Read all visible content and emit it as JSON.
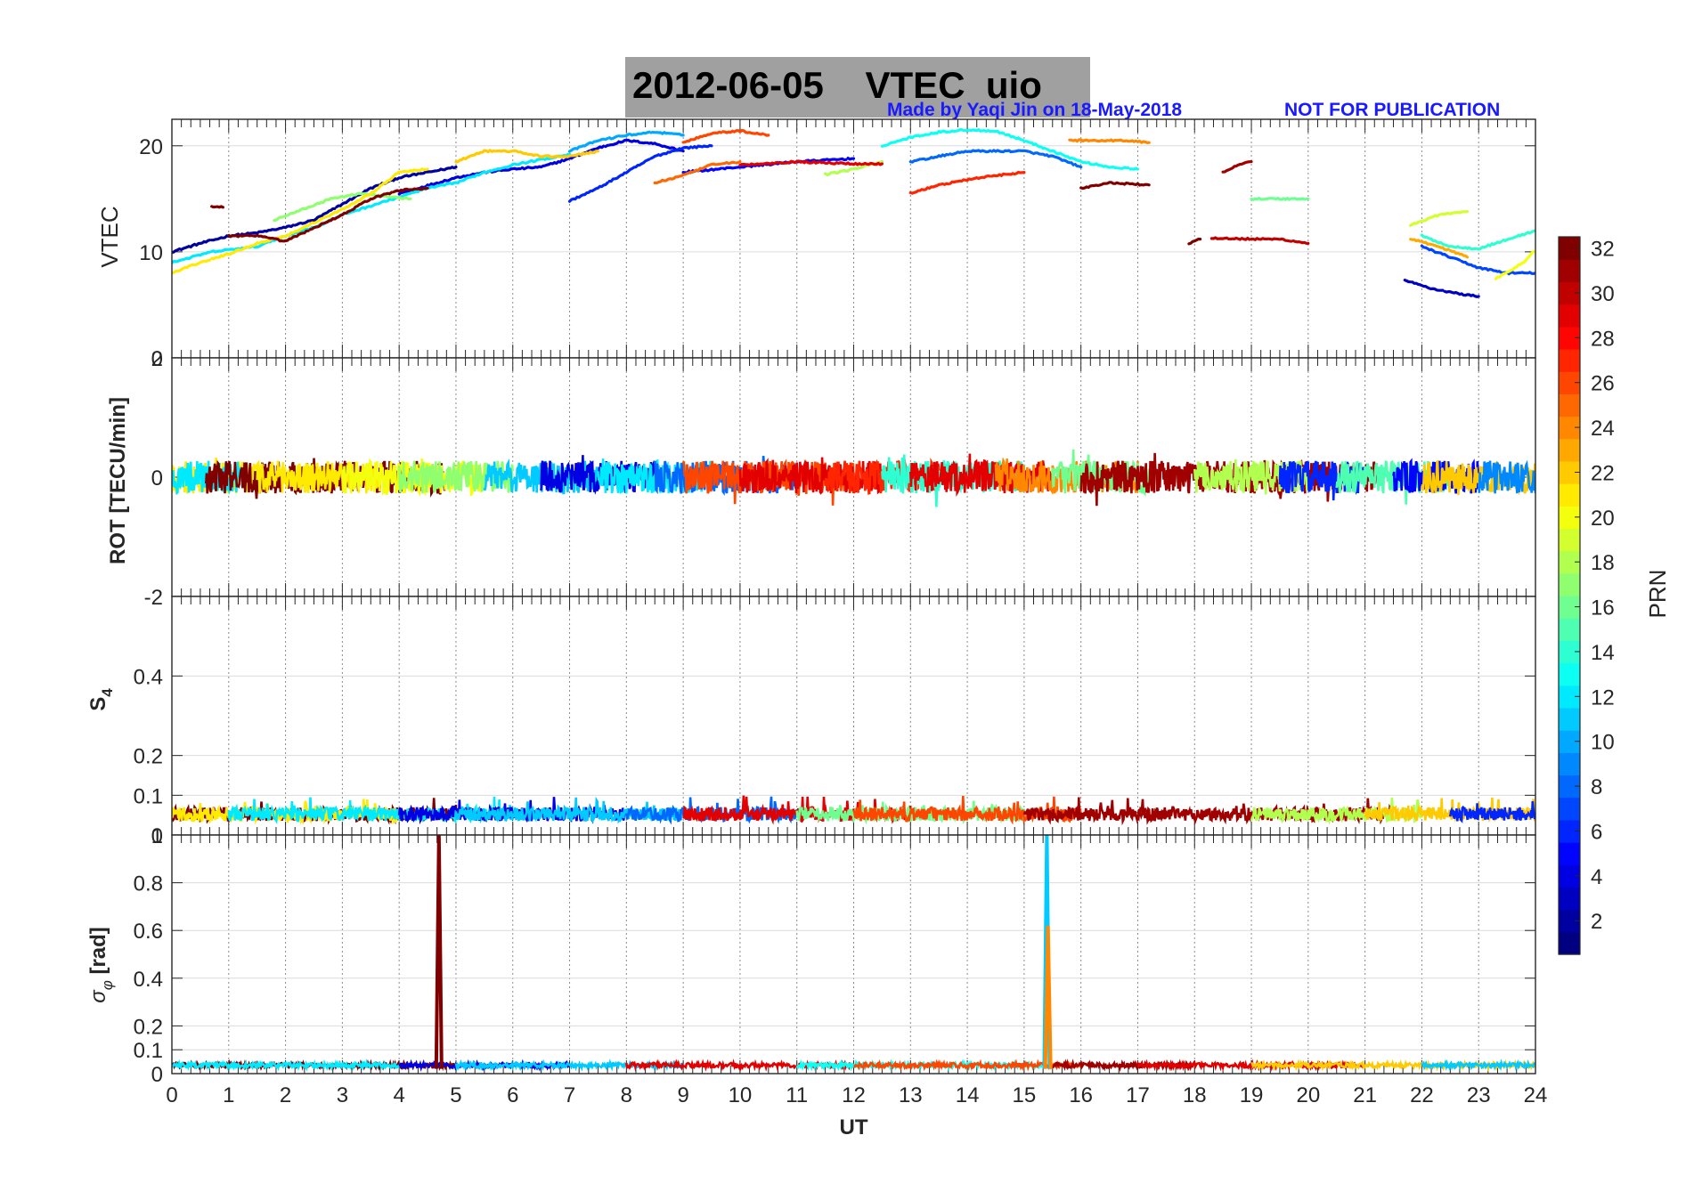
{
  "header": {
    "title": "2012-06-05    VTEC  uio",
    "credit": "Made by Yaqi Jin on 18-May-2018",
    "notice": "NOT FOR PUBLICATION"
  },
  "chart_data": [
    {
      "type": "line",
      "panel": "vtec",
      "xlabel": "",
      "ylabel": "VTEC",
      "xlim": [
        0,
        24
      ],
      "ylim": [
        0,
        22.5
      ],
      "yticks": [
        0,
        10,
        20
      ],
      "ytick_labels": [
        "0",
        "10",
        "20"
      ],
      "grid": true,
      "series": [
        {
          "prn": 2,
          "points": [
            [
              0,
              10.0
            ],
            [
              0.5,
              10.8
            ],
            [
              1,
              11.5
            ],
            [
              1.5,
              11.8
            ],
            [
              2,
              12.3
            ],
            [
              2.5,
              13.0
            ],
            [
              3,
              14.5
            ],
            [
              3.5,
              16.0
            ],
            [
              4,
              17.0
            ],
            [
              4.5,
              17.5
            ],
            [
              5,
              18.0
            ]
          ]
        },
        {
          "prn": 4,
          "points": [
            [
              4,
              15.5
            ],
            [
              5,
              17.0
            ],
            [
              5.5,
              17.5
            ],
            [
              6,
              17.8
            ],
            [
              6.5,
              18.0
            ],
            [
              7,
              18.8
            ],
            [
              7.5,
              19.8
            ],
            [
              8,
              20.5
            ],
            [
              8.5,
              20.2
            ],
            [
              9,
              19.5
            ]
          ]
        },
        {
          "prn": 6,
          "points": [
            [
              7,
              14.8
            ],
            [
              7.5,
              16.0
            ],
            [
              8,
              17.5
            ],
            [
              8.5,
              19.0
            ],
            [
              9,
              19.8
            ],
            [
              9.5,
              20.0
            ]
          ]
        },
        {
          "prn": 5,
          "points": [
            [
              9,
              17.5
            ],
            [
              10,
              18.0
            ],
            [
              11,
              18.5
            ],
            [
              12,
              18.8
            ]
          ]
        },
        {
          "prn": 8,
          "points": [
            [
              13,
              18.5
            ],
            [
              14,
              19.5
            ],
            [
              15,
              19.5
            ],
            [
              15.5,
              19.0
            ],
            [
              16,
              18.0
            ]
          ]
        },
        {
          "prn": 7,
          "points": [
            [
              22,
              10.5
            ],
            [
              22.5,
              9.5
            ],
            [
              23,
              8.5
            ],
            [
              23.5,
              8.0
            ],
            [
              24,
              8.0
            ]
          ]
        },
        {
          "prn": 3,
          "points": [
            [
              21.7,
              7.3
            ],
            [
              22.2,
              6.5
            ],
            [
              22.7,
              6.0
            ],
            [
              23,
              5.8
            ]
          ]
        },
        {
          "prn": 12,
          "points": [
            [
              0,
              9.0
            ],
            [
              0.7,
              10.0
            ],
            [
              1.5,
              10.5
            ],
            [
              2,
              11.5
            ],
            [
              2.6,
              12.5
            ],
            [
              3,
              13.5
            ],
            [
              4.5,
              16.0
            ],
            [
              5,
              16.5
            ],
            [
              5.5,
              17.5
            ],
            [
              6,
              18.2
            ],
            [
              7,
              19.2
            ]
          ]
        },
        {
          "prn": 10,
          "points": [
            [
              7,
              19.5
            ],
            [
              7.5,
              20.5
            ],
            [
              8,
              21.0
            ],
            [
              8.5,
              21.3
            ],
            [
              9,
              21.0
            ]
          ]
        },
        {
          "prn": 13,
          "points": [
            [
              12.5,
              20.0
            ],
            [
              13,
              20.8
            ],
            [
              13.5,
              21.3
            ],
            [
              14,
              21.5
            ],
            [
              14.5,
              21.4
            ],
            [
              15,
              20.5
            ],
            [
              15.5,
              19.5
            ],
            [
              16,
              18.5
            ],
            [
              16.5,
              18.0
            ],
            [
              17,
              17.8
            ]
          ]
        },
        {
          "prn": 14,
          "points": [
            [
              22,
              11.5
            ],
            [
              22.5,
              10.5
            ],
            [
              23,
              10.3
            ],
            [
              24,
              12.0
            ]
          ]
        },
        {
          "prn": 17,
          "points": [
            [
              1.8,
              13.0
            ],
            [
              2.3,
              14.0
            ],
            [
              2.8,
              15.0
            ],
            [
              3.3,
              15.5
            ],
            [
              3.8,
              15.2
            ],
            [
              4.2,
              15.0
            ]
          ]
        },
        {
          "prn": 18,
          "points": [
            [
              11.5,
              17.3
            ],
            [
              12,
              17.8
            ],
            [
              12.5,
              18.5
            ]
          ]
        },
        {
          "prn": 16,
          "points": [
            [
              19,
              15.0
            ],
            [
              19.5,
              15.0
            ],
            [
              20,
              15.0
            ]
          ]
        },
        {
          "prn": 19,
          "points": [
            [
              21.8,
              12.5
            ],
            [
              22.3,
              13.5
            ],
            [
              22.8,
              13.8
            ]
          ]
        },
        {
          "prn": 21,
          "points": [
            [
              0,
              8.0
            ],
            [
              0.5,
              9.0
            ],
            [
              1,
              9.8
            ],
            [
              1.5,
              10.8
            ],
            [
              2,
              11.5
            ],
            [
              3,
              14.0
            ],
            [
              3.5,
              15.5
            ],
            [
              4,
              17.5
            ],
            [
              4.5,
              17.8
            ]
          ]
        },
        {
          "prn": 22,
          "points": [
            [
              5,
              18.5
            ],
            [
              5.5,
              19.5
            ],
            [
              6,
              19.5
            ],
            [
              6.5,
              19.0
            ],
            [
              7,
              19.0
            ],
            [
              7.5,
              19.5
            ]
          ]
        },
        {
          "prn": 23,
          "points": [
            [
              21.8,
              11.2
            ],
            [
              22.3,
              10.5
            ],
            [
              22.8,
              9.5
            ]
          ]
        },
        {
          "prn": 20,
          "points": [
            [
              23.3,
              7.5
            ],
            [
              23.8,
              9.0
            ],
            [
              24,
              10.3
            ]
          ]
        },
        {
          "prn": 24,
          "points": [
            [
              15.8,
              20.5
            ],
            [
              16.3,
              20.5
            ],
            [
              16.8,
              20.5
            ],
            [
              17.2,
              20.3
            ]
          ]
        },
        {
          "prn": 25,
          "points": [
            [
              8.5,
              16.5
            ],
            [
              9,
              17.2
            ],
            [
              9.5,
              18.2
            ],
            [
              10,
              18.5
            ]
          ]
        },
        {
          "prn": 27,
          "points": [
            [
              13,
              15.5
            ],
            [
              13.5,
              16.3
            ],
            [
              14,
              16.8
            ],
            [
              14.5,
              17.2
            ],
            [
              15,
              17.5
            ]
          ]
        },
        {
          "prn": 26,
          "points": [
            [
              9,
              20.3
            ],
            [
              9.5,
              21.2
            ],
            [
              10,
              21.4
            ],
            [
              10.5,
              21.0
            ]
          ]
        },
        {
          "prn": 29,
          "points": [
            [
              10,
              18.2
            ],
            [
              11,
              18.5
            ],
            [
              12,
              18.3
            ],
            [
              12.5,
              18.3
            ]
          ]
        },
        {
          "prn": 31,
          "points": [
            [
              18.5,
              17.5
            ],
            [
              18.8,
              18.3
            ],
            [
              19,
              18.5
            ]
          ]
        },
        {
          "prn": 30,
          "points": [
            [
              18.3,
              11.3
            ],
            [
              19,
              11.2
            ],
            [
              19.5,
              11.2
            ],
            [
              20,
              10.8
            ]
          ]
        },
        {
          "prn": 32,
          "points": [
            [
              0.7,
              14.3
            ],
            [
              0.9,
              14.2
            ]
          ]
        },
        {
          "prn": 32,
          "points": [
            [
              1,
              11.5
            ],
            [
              1.5,
              11.5
            ],
            [
              2,
              11.0
            ],
            [
              3,
              13.5
            ],
            [
              3.5,
              15.0
            ],
            [
              4,
              15.8
            ],
            [
              4.5,
              16.0
            ]
          ]
        },
        {
          "prn": 32,
          "points": [
            [
              16,
              16.0
            ],
            [
              16.5,
              16.5
            ],
            [
              17.2,
              16.3
            ]
          ]
        },
        {
          "prn": 32,
          "points": [
            [
              17.9,
              10.8
            ],
            [
              18.1,
              11.2
            ]
          ]
        }
      ]
    },
    {
      "type": "line",
      "panel": "rot",
      "ylabel": "ROT [TECU/min]",
      "xlim": [
        0,
        24
      ],
      "ylim": [
        -2,
        2
      ],
      "yticks": [
        -2,
        0,
        2
      ],
      "ytick_labels": [
        "-2",
        "0",
        "2"
      ],
      "grid": true,
      "note": "dense noisy traces per PRN centered near 0 with amplitude about 0.3 TECU/min"
    },
    {
      "type": "line",
      "panel": "s4",
      "ylabel_main": "S",
      "ylabel_sub": "4",
      "xlim": [
        0,
        24
      ],
      "ylim": [
        0,
        0.6
      ],
      "yticks": [
        0,
        0.1,
        0.2,
        0.4
      ],
      "ytick_labels": [
        "0",
        "0.1",
        "0.2",
        "0.4"
      ],
      "grid": true,
      "note": "noisy traces between about 0.02 and 0.1"
    },
    {
      "type": "line",
      "panel": "sigma_phi",
      "ylabel_main": "σ",
      "ylabel_sub": "φ",
      "ylabel_unit": " [rad]",
      "xlabel": "UT",
      "xlim": [
        0,
        24
      ],
      "ylim": [
        0,
        1
      ],
      "yticks": [
        0,
        0.1,
        0.2,
        0.4,
        0.6,
        0.8,
        1
      ],
      "ytick_labels": [
        "0",
        "0.1",
        "0.2",
        "0.4",
        "0.6",
        "0.8",
        "1"
      ],
      "xticks": [
        0,
        1,
        2,
        3,
        4,
        5,
        6,
        7,
        8,
        9,
        10,
        11,
        12,
        13,
        14,
        15,
        16,
        17,
        18,
        19,
        20,
        21,
        22,
        23,
        24
      ],
      "xtick_labels": [
        "0",
        "1",
        "2",
        "3",
        "4",
        "5",
        "6",
        "7",
        "8",
        "9",
        "10",
        "11",
        "12",
        "13",
        "14",
        "15",
        "16",
        "17",
        "18",
        "19",
        "20",
        "21",
        "22",
        "23",
        "24"
      ],
      "grid": true,
      "spikes": [
        {
          "x": 4.7,
          "value": 1.0,
          "prn": 32
        },
        {
          "x": 15.4,
          "value": 1.0,
          "prn": 11
        },
        {
          "x": 15.42,
          "value": 0.62,
          "prn": 24
        }
      ]
    },
    {
      "type": "heatmap",
      "panel": "colorbar",
      "label": "PRN",
      "range": [
        1,
        32
      ],
      "ticks": [
        2,
        4,
        6,
        8,
        10,
        12,
        14,
        16,
        18,
        20,
        22,
        24,
        26,
        28,
        30,
        32
      ],
      "tick_labels": [
        "2",
        "4",
        "6",
        "8",
        "10",
        "12",
        "14",
        "16",
        "18",
        "20",
        "22",
        "24",
        "26",
        "28",
        "30",
        "32"
      ],
      "colormap": "jet"
    }
  ]
}
